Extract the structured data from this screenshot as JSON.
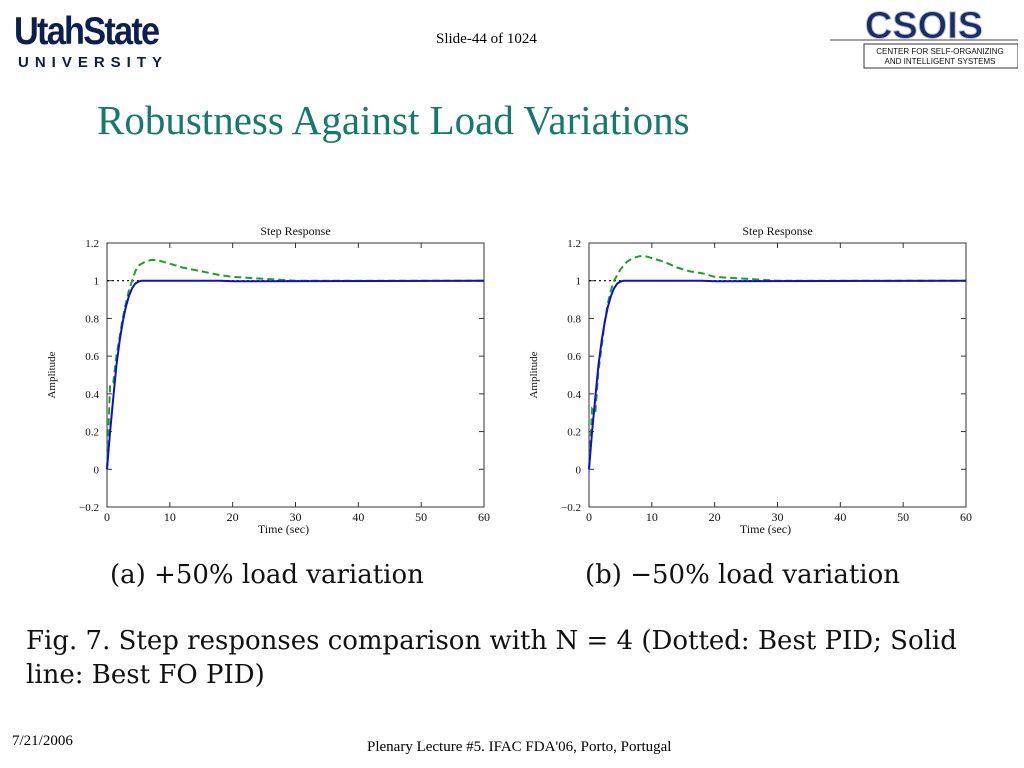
{
  "header": {
    "usu_logo_main": "UtahState",
    "usu_logo_sub": "UNIVERSITY",
    "slide_number": "Slide-44 of 1024",
    "csois_logo_main": "CSOIS",
    "csois_logo_line1": "CENTER FOR SELF-ORGANIZING",
    "csois_logo_line2": "AND INTELLIGENT SYSTEMS"
  },
  "title": "Robustness Against Load Variations",
  "colors": {
    "title": "#17786e",
    "usu_navy": "#0d1f4d",
    "fo_pid_line": "#1010c8",
    "variation_line": "#20a020",
    "best_pid_dotted": "#000000"
  },
  "chart_data": [
    {
      "type": "line",
      "title": "Step Response",
      "xlabel": "Time (sec)",
      "ylabel": "Amplitude",
      "xlim": [
        0,
        60
      ],
      "ylim": [
        -0.2,
        1.2
      ],
      "xticks": [
        0,
        10,
        20,
        30,
        40,
        50,
        60
      ],
      "yticks": [
        -0.2,
        0,
        0.2,
        0.4,
        0.6,
        0.8,
        1,
        1.2
      ],
      "ytick_labels": [
        "−0.2",
        "0",
        "0.2",
        "0.4",
        "0.6",
        "0.8",
        "1",
        "1.2"
      ],
      "caption": "(a)  +50%  load variation",
      "series": [
        {
          "style": "solid",
          "color": "#1010c8",
          "x": [
            0,
            0.5,
            1,
            1.5,
            2,
            2.5,
            3,
            3.5,
            4,
            4.5,
            5,
            5.5,
            6,
            7,
            8,
            10,
            15,
            18,
            20,
            60
          ],
          "y": [
            0,
            0.2,
            0.38,
            0.55,
            0.68,
            0.78,
            0.86,
            0.92,
            0.96,
            0.985,
            0.995,
            1.0,
            1.0,
            1.0,
            1.0,
            1.0,
            1.0,
            1.0,
            0.997,
            1.0
          ]
        },
        {
          "style": "dashed",
          "color": "#20a020",
          "x": [
            0,
            0.5,
            1,
            1.5,
            2,
            2.5,
            3,
            3.5,
            4,
            4.5,
            5,
            6,
            7,
            8,
            9,
            10,
            12,
            15,
            18,
            20,
            25,
            30,
            35,
            40,
            45,
            60
          ],
          "y": [
            0,
            0.45,
            0.46,
            0.6,
            0.7,
            0.8,
            0.88,
            0.95,
            1.0,
            1.05,
            1.08,
            1.1,
            1.11,
            1.11,
            1.1,
            1.09,
            1.07,
            1.05,
            1.03,
            1.02,
            1.01,
            1.0,
            1.0,
            1.0,
            1.0,
            1.0
          ]
        },
        {
          "style": "dotted",
          "color": "#000000",
          "x": [
            0,
            60
          ],
          "y": [
            1,
            1
          ]
        }
      ]
    },
    {
      "type": "line",
      "title": "Step Response",
      "xlabel": "Time (sec)",
      "ylabel": "Amplitude",
      "xlim": [
        0,
        60
      ],
      "ylim": [
        -0.2,
        1.2
      ],
      "xticks": [
        0,
        10,
        20,
        30,
        40,
        50,
        60
      ],
      "yticks": [
        -0.2,
        0,
        0.2,
        0.4,
        0.6,
        0.8,
        1,
        1.2
      ],
      "ytick_labels": [
        "−0.2",
        "0",
        "0.2",
        "0.4",
        "0.6",
        "0.8",
        "1",
        "1.2"
      ],
      "caption": "(b)  −50%  load variation",
      "series": [
        {
          "style": "solid",
          "color": "#1010c8",
          "x": [
            0,
            0.5,
            1,
            1.5,
            2,
            2.5,
            3,
            3.5,
            4,
            4.5,
            5,
            5.5,
            6,
            7,
            8,
            10,
            15,
            18,
            20,
            60
          ],
          "y": [
            0,
            0.2,
            0.38,
            0.55,
            0.68,
            0.78,
            0.86,
            0.92,
            0.96,
            0.985,
            0.995,
            1.0,
            1.0,
            1.0,
            1.0,
            1.0,
            1.0,
            1.0,
            0.997,
            1.0
          ]
        },
        {
          "style": "dashed",
          "color": "#20a020",
          "x": [
            0,
            0.5,
            1,
            1.5,
            2,
            2.5,
            3,
            3.5,
            4,
            5,
            6,
            7,
            8,
            9,
            10,
            11,
            12,
            14,
            16,
            18,
            20,
            25,
            30,
            35,
            40,
            45,
            60
          ],
          "y": [
            0,
            0.32,
            0.3,
            0.52,
            0.65,
            0.78,
            0.88,
            0.95,
            1.0,
            1.06,
            1.1,
            1.12,
            1.13,
            1.13,
            1.12,
            1.11,
            1.1,
            1.07,
            1.05,
            1.04,
            1.02,
            1.01,
            1.0,
            1.0,
            1.0,
            1.0,
            1.0
          ]
        },
        {
          "style": "dotted",
          "color": "#000000",
          "x": [
            0,
            60
          ],
          "y": [
            1,
            1
          ]
        }
      ]
    }
  ],
  "figure_caption_line1": "Fig. 7.    Step responses comparison with N = 4 (Dotted: Best PID; Solid",
  "figure_caption_line2": "line: Best FO PID)",
  "footer": {
    "date": "7/21/2006",
    "text": "Plenary Lecture #5. IFAC FDA'06, Porto, Portugal"
  }
}
